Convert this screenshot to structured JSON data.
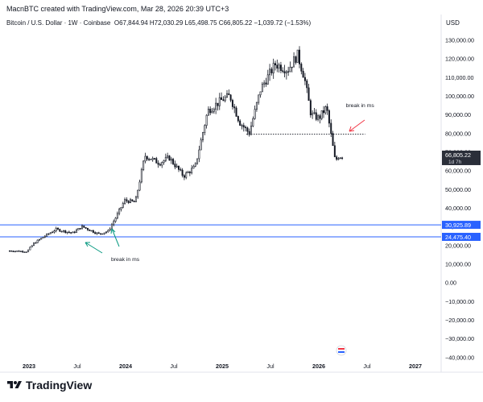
{
  "header": {
    "author_line": "MacnBTC created with TradingView.com, Mar 28, 2026 20:39 UTC+3"
  },
  "symbol": {
    "name": "Bitcoin / U.S. Dollar · 1W · Coinbase",
    "o_label": "O",
    "o_value": "67,844.94",
    "h_label": "H",
    "h_value": "72,030.29",
    "l_label": "L",
    "l_value": "65,498.75",
    "c_label": "C",
    "c_value": "66,805.22",
    "change": "−1,039.72 (−1.53%)"
  },
  "price_axis": {
    "currency": "USD"
  },
  "branding": {
    "name": "TradingView"
  },
  "colors": {
    "candle": "#131722",
    "support_line": "#2962ff",
    "support_fill": "#2962ff",
    "last_price_badge": "#2a2e39",
    "annotation_red_arrow": "#f23645",
    "annotation_green_arrow": "#089981",
    "dotted_line": "#131722"
  },
  "chart_data": {
    "type": "candlestick",
    "timeframe": "1W",
    "x_ticks": [
      "2023",
      "Jul",
      "2024",
      "Jul",
      "2025",
      "Jul",
      "2026",
      "Jul",
      "2027"
    ],
    "x_ticks_years": [
      2023.0,
      2023.5,
      2024.0,
      2024.5,
      2025.0,
      2025.5,
      2026.0,
      2026.5,
      2027.0
    ],
    "y_ticks": [
      130000,
      120000,
      110000,
      100000,
      90000,
      80000,
      70000,
      60000,
      50000,
      40000,
      30000,
      20000,
      10000,
      0,
      -10000,
      -20000,
      -30000,
      -40000
    ],
    "y_tick_labels": [
      "130,000.00",
      "120,000.00",
      "110,000.00",
      "100,000.00",
      "90,000.00",
      "80,000.00",
      "70,000.00",
      "60,000.00",
      "50,000.00",
      "40,000.00",
      "30,000.00",
      "20,000.00",
      "10,000.00",
      "0.00",
      "−10,000.00",
      "−20,000.00",
      "−30,000.00",
      "−40,000.00"
    ],
    "ylim": [
      -42000,
      135000
    ],
    "xlim": [
      2022.75,
      2027.25
    ],
    "levels": [
      {
        "value": 30925.89,
        "label": "30,925.89"
      },
      {
        "value": 24475.4,
        "label": "24,475.40"
      }
    ],
    "last_price": {
      "value": 66805.22,
      "label": "66,805.22",
      "countdown": "1d 7h"
    },
    "dotted_level": {
      "value": 79500,
      "x_from": 2025.25,
      "x_to": 2026.48
    },
    "annotations": [
      {
        "text": "break in ms",
        "x": 2026.28,
        "y": 94000
      },
      {
        "text": "break in ms",
        "x": 2023.85,
        "y": 11500
      }
    ],
    "key_points": [
      {
        "date": 2022.8,
        "price": 17000
      },
      {
        "date": 2022.98,
        "price": 16600
      },
      {
        "date": 2023.05,
        "price": 21000
      },
      {
        "date": 2023.15,
        "price": 24500
      },
      {
        "date": 2023.28,
        "price": 28500
      },
      {
        "date": 2023.45,
        "price": 26500
      },
      {
        "date": 2023.55,
        "price": 30000
      },
      {
        "date": 2023.72,
        "price": 26000
      },
      {
        "date": 2023.82,
        "price": 27500
      },
      {
        "date": 2023.9,
        "price": 35000
      },
      {
        "date": 2023.99,
        "price": 44000
      },
      {
        "date": 2024.1,
        "price": 43000
      },
      {
        "date": 2024.2,
        "price": 68000
      },
      {
        "date": 2024.35,
        "price": 64000
      },
      {
        "date": 2024.45,
        "price": 67000
      },
      {
        "date": 2024.6,
        "price": 57000
      },
      {
        "date": 2024.72,
        "price": 62000
      },
      {
        "date": 2024.85,
        "price": 92000
      },
      {
        "date": 2025.0,
        "price": 98000
      },
      {
        "date": 2025.08,
        "price": 100000
      },
      {
        "date": 2025.18,
        "price": 86000
      },
      {
        "date": 2025.28,
        "price": 80000
      },
      {
        "date": 2025.4,
        "price": 104000
      },
      {
        "date": 2025.55,
        "price": 117000
      },
      {
        "date": 2025.68,
        "price": 114000
      },
      {
        "date": 2025.78,
        "price": 122000
      },
      {
        "date": 2025.85,
        "price": 110000
      },
      {
        "date": 2025.92,
        "price": 90000
      },
      {
        "date": 2026.0,
        "price": 88000
      },
      {
        "date": 2026.08,
        "price": 94000
      },
      {
        "date": 2026.13,
        "price": 78000
      },
      {
        "date": 2026.17,
        "price": 65000
      },
      {
        "date": 2026.21,
        "price": 68000
      },
      {
        "date": 2026.25,
        "price": 66805
      }
    ]
  }
}
